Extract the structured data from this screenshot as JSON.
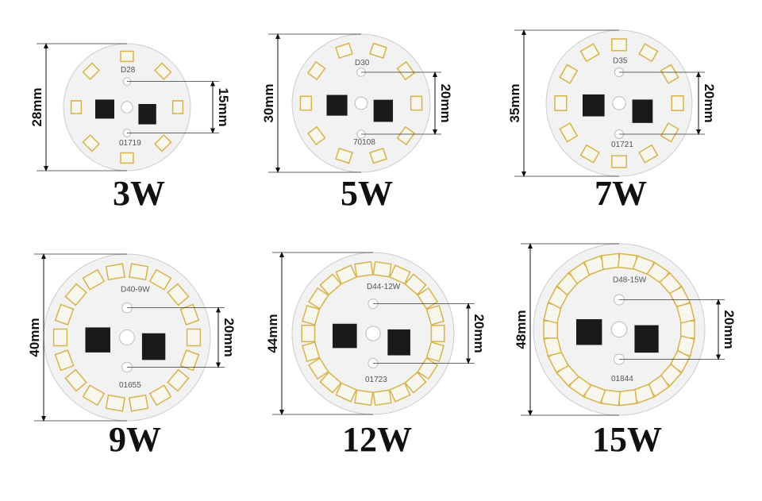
{
  "boards": [
    {
      "power": "3W",
      "diameter": "28mm",
      "hole_spacing": "15mm",
      "code": "D28",
      "marking": "01719"
    },
    {
      "power": "5W",
      "diameter": "30mm",
      "hole_spacing": "20mm",
      "code": "D30",
      "marking": "70108"
    },
    {
      "power": "7W",
      "diameter": "35mm",
      "hole_spacing": "20mm",
      "code": "D35",
      "marking": "01721"
    },
    {
      "power": "9W",
      "diameter": "40mm",
      "hole_spacing": "20mm",
      "code": "D40-9W",
      "marking": "01655"
    },
    {
      "power": "12W",
      "diameter": "44mm",
      "hole_spacing": "20mm",
      "code": "D44-12W",
      "marking": "01723"
    },
    {
      "power": "15W",
      "diameter": "48mm",
      "hole_spacing": "20mm",
      "code": "D48-15W",
      "marking": "01844"
    }
  ],
  "colors": {
    "pcb": "#f2f2f2",
    "led": "#f7f7ee",
    "led_frame": "#d8b24a",
    "chip": "#1a1a1a",
    "text": "#111111"
  }
}
